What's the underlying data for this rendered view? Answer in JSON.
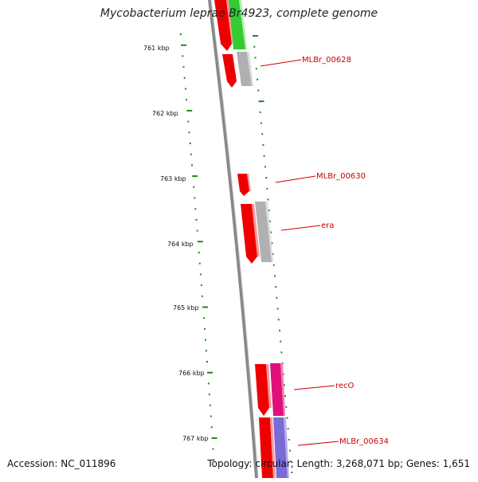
{
  "title": "Mycobacterium leprae Br4923, complete genome",
  "footer": {
    "accession": "Accession: NC_011896",
    "summary": "Topology: circular; Length: 3,268,071 bp; Genes: 1,651"
  },
  "ruler": {
    "labels": [
      "761 kbp",
      "762 kbp",
      "763 kbp",
      "764 kbp",
      "765 kbp",
      "766 kbp",
      "767 kbp"
    ],
    "tick_color": "#1a8a1a"
  },
  "genes": [
    {
      "name": "MLBr_00628"
    },
    {
      "name": "MLBr_00630"
    },
    {
      "name": "era"
    },
    {
      "name": "recO"
    },
    {
      "name": "MLBr_00634"
    }
  ],
  "colors": {
    "backbone": "#777777",
    "cds_forward": "#ee0000",
    "cds_green": "#33cc33",
    "cds_gray": "#aaaaaa",
    "cds_magenta": "#e0107a",
    "cds_purple": "#7b6bd6",
    "label": "#cc0000",
    "tick": "#1a8a1a"
  }
}
